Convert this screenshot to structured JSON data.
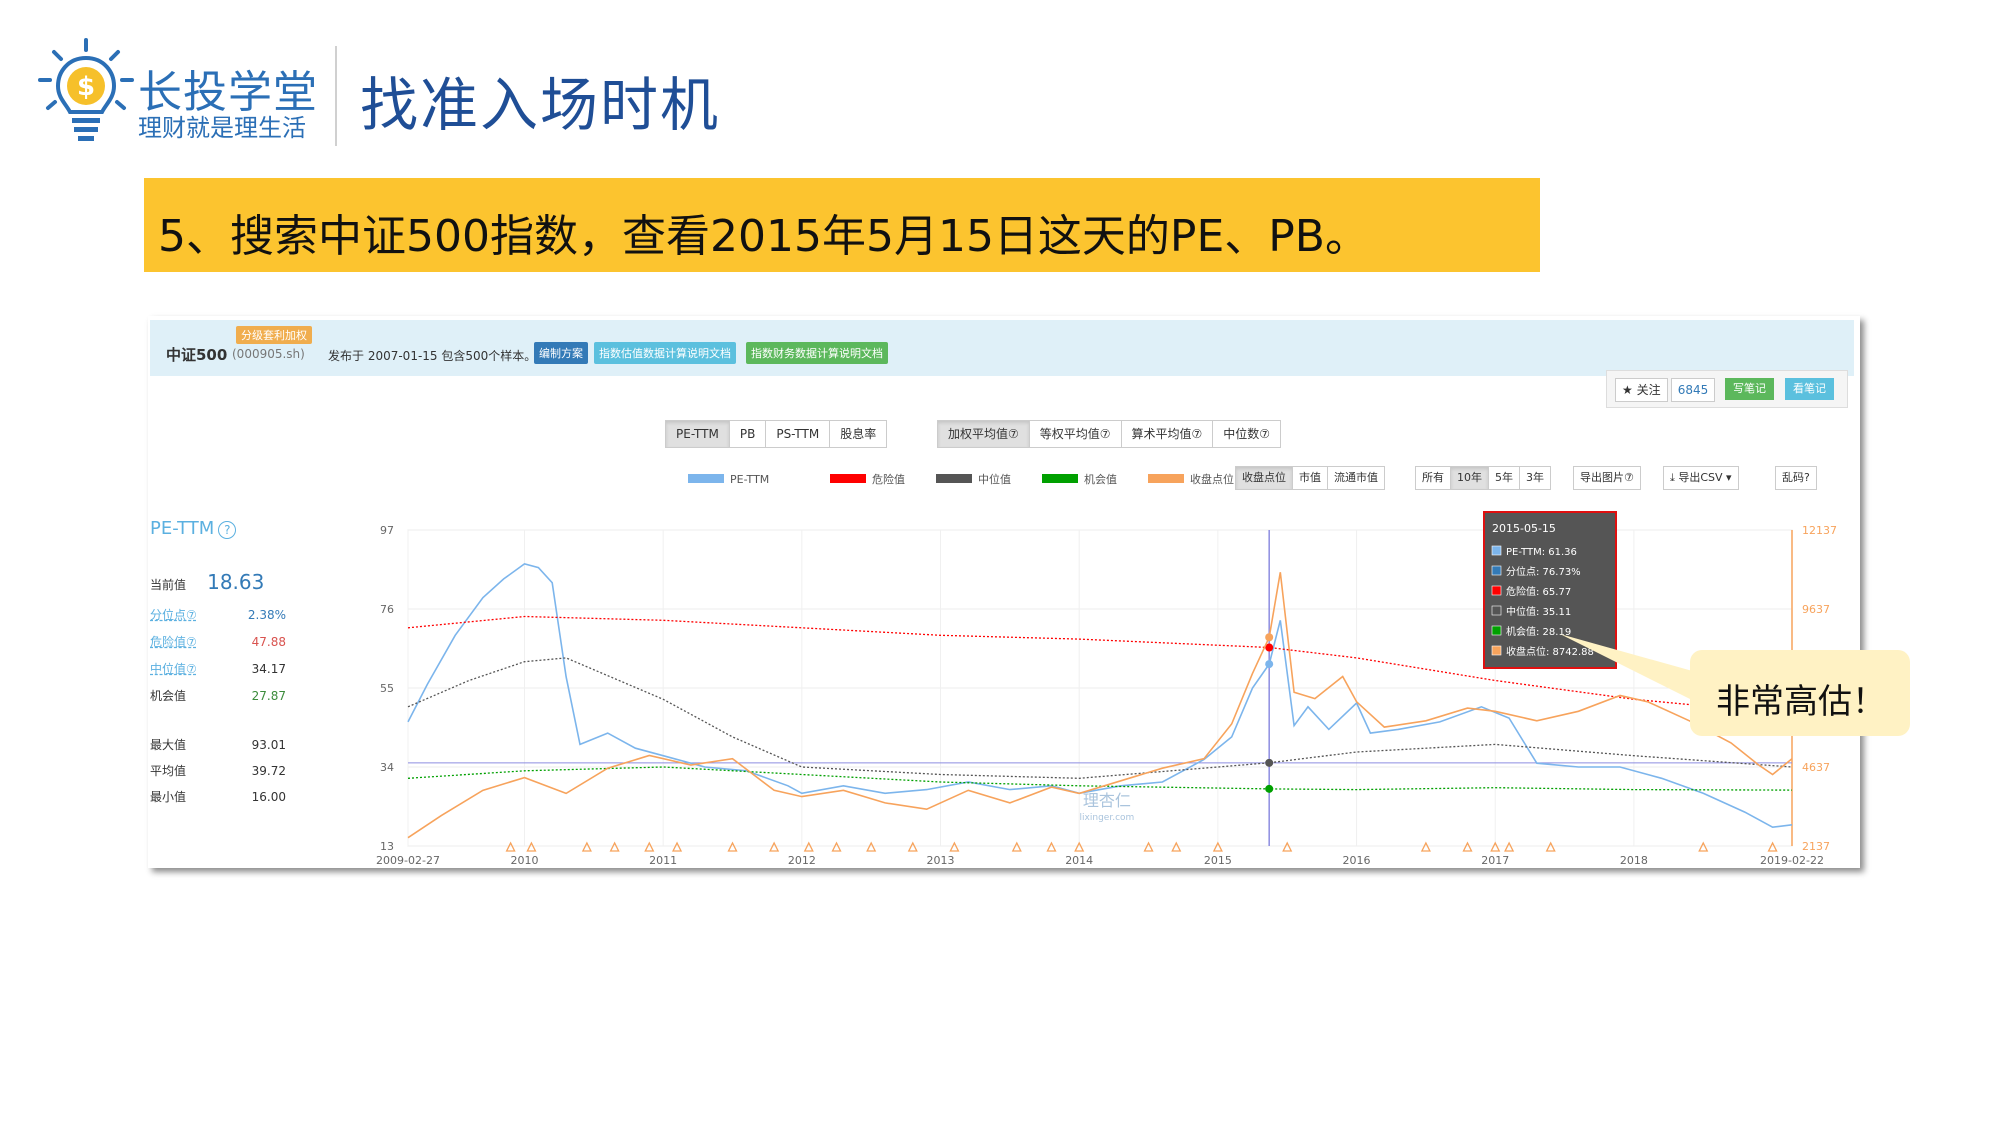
{
  "header": {
    "brand_name": "长投学堂",
    "brand_slogan": "理财就是理生活",
    "slide_title": "找准入场时机",
    "logo_icon": "lightbulb-dollar-icon"
  },
  "banner": {
    "text": "5、搜索中证500指数，查看2015年5月15日这天的PE、PB。"
  },
  "index_info": {
    "badge": "分级套利加权",
    "name": "中证500",
    "code": "(000905.sh)",
    "description": "发布于 2007-01-15 包含500个样本。",
    "buttons": [
      "编制方案",
      "指数估值数据计算说明文档",
      "指数财务数据计算说明文档"
    ]
  },
  "follow": {
    "follow_label": "★ 关注",
    "count": "6845",
    "write_note": "写笔记",
    "view_note": "看笔记"
  },
  "metric_tabs": [
    "PE-TTM",
    "PB",
    "PS-TTM",
    "股息率"
  ],
  "metric_active": 0,
  "avg_tabs": [
    "加权平均值⑦",
    "等权平均值⑦",
    "算术平均值⑦",
    "中位数⑦"
  ],
  "avg_active": 0,
  "secondary_tabs": [
    "收盘点位",
    "市值",
    "流通市值"
  ],
  "secondary_active": 0,
  "range_tabs": [
    "所有",
    "10年",
    "5年",
    "3年"
  ],
  "range_active": 1,
  "tools": {
    "export_image": "导出图片⑦",
    "export_csv": "导出CSV",
    "garbled": "乱码?"
  },
  "stats": {
    "title": "PE-TTM",
    "current_label": "当前值",
    "current_value": "18.63",
    "rows": [
      {
        "label": "分位点⑦",
        "value": "2.38%",
        "color": "#337ab7",
        "link": true
      },
      {
        "label": "危险值⑦",
        "value": "47.88",
        "color": "#d9534f",
        "link": true
      },
      {
        "label": "中位值⑦",
        "value": "34.17",
        "color": "#333333",
        "link": true
      },
      {
        "label": "机会值",
        "value": "27.87",
        "color": "#3c8c3c",
        "link": false
      }
    ],
    "rows2": [
      {
        "label": "最大值",
        "value": "93.01"
      },
      {
        "label": "平均值",
        "value": "39.72"
      },
      {
        "label": "最小值",
        "value": "16.00"
      }
    ]
  },
  "tooltip": {
    "date": "2015-05-15",
    "items": [
      {
        "label": "PE-TTM: 61.36",
        "color": "#7cb5ec"
      },
      {
        "label": "分位点: 76.73%",
        "color": "#337ab7"
      },
      {
        "label": "危险值: 65.77",
        "color": "#ff0000"
      },
      {
        "label": "中位值: 35.11",
        "color": "#555555"
      },
      {
        "label": "机会值: 28.19",
        "color": "#00a000"
      },
      {
        "label": "收盘点位: 8742.88",
        "color": "#f7a35c"
      }
    ]
  },
  "callout": {
    "text": "非常高估！"
  },
  "watermark": {
    "text": "理杏仁",
    "url": "lixinger.com"
  },
  "chart_data": {
    "type": "line",
    "legend": [
      "PE-TTM",
      "危险值",
      "中位值",
      "机会值",
      "收盘点位"
    ],
    "legend_placement": "top-center",
    "colors": {
      "PE-TTM": "#7cb5ec",
      "危险值": "#ff0000",
      "中位值": "#555555",
      "机会值": "#00a000",
      "收盘点位": "#f7a35c"
    },
    "x_tick_labels": [
      "2009-02-27",
      "2010",
      "2011",
      "2012",
      "2013",
      "2014",
      "2015",
      "2016",
      "2017",
      "2018",
      "2019-02-22"
    ],
    "x_tick_years": [
      2009.16,
      2010,
      2011,
      2012,
      2013,
      2014,
      2015,
      2016,
      2017,
      2018,
      2019.14
    ],
    "xlim": [
      2009.16,
      2019.14
    ],
    "y_left_ticks": [
      13,
      34,
      55,
      76,
      97
    ],
    "y_left_lim": [
      13,
      97
    ],
    "y_right_ticks": [
      2137,
      4637,
      7137,
      9637,
      12137
    ],
    "y_right_lim": [
      2137,
      12137
    ],
    "grid": true,
    "highlight_x": 2015.37,
    "series": [
      {
        "name": "PE-TTM",
        "axis": "left",
        "x": [
          2009.16,
          2009.3,
          2009.5,
          2009.7,
          2009.85,
          2010.0,
          2010.1,
          2010.2,
          2010.3,
          2010.4,
          2010.6,
          2010.8,
          2011.0,
          2011.3,
          2011.6,
          2011.9,
          2012.0,
          2012.3,
          2012.6,
          2012.9,
          2013.2,
          2013.5,
          2013.8,
          2014.0,
          2014.3,
          2014.6,
          2014.9,
          2015.1,
          2015.25,
          2015.37,
          2015.45,
          2015.55,
          2015.65,
          2015.8,
          2016.0,
          2016.1,
          2016.3,
          2016.6,
          2016.9,
          2017.1,
          2017.3,
          2017.6,
          2017.9,
          2018.2,
          2018.5,
          2018.8,
          2019.0,
          2019.14
        ],
        "values": [
          46,
          56,
          69,
          79,
          84,
          88,
          87,
          83,
          58,
          40,
          43,
          39,
          37,
          34,
          33,
          29,
          27,
          29,
          27,
          28,
          30,
          28,
          29,
          27,
          29,
          30,
          36,
          42,
          55,
          61.36,
          73,
          45,
          50,
          44,
          51,
          43,
          44,
          46,
          50,
          47,
          35,
          34,
          34,
          31,
          27,
          22,
          18,
          18.63
        ]
      },
      {
        "name": "危险值",
        "axis": "left",
        "x": [
          2009.16,
          2010.0,
          2011.0,
          2012.0,
          2013.0,
          2014.0,
          2015.37,
          2016.0,
          2017.0,
          2018.0,
          2019.14
        ],
        "values": [
          71,
          74,
          73,
          71,
          69,
          68,
          65.77,
          63,
          57,
          52,
          48
        ]
      },
      {
        "name": "中位值",
        "axis": "left",
        "x": [
          2009.16,
          2009.6,
          2010.0,
          2010.3,
          2011.0,
          2011.5,
          2012.0,
          2013.0,
          2014.0,
          2015.0,
          2015.37,
          2016.0,
          2017.0,
          2018.0,
          2019.14
        ],
        "values": [
          50,
          57,
          62,
          63,
          52,
          42,
          34,
          32,
          31,
          34,
          35.11,
          38,
          40,
          37,
          34
        ]
      },
      {
        "name": "机会值",
        "axis": "left",
        "x": [
          2009.16,
          2010.0,
          2011.0,
          2012.0,
          2013.0,
          2014.0,
          2015.37,
          2016.0,
          2017.0,
          2018.0,
          2019.14
        ],
        "values": [
          31,
          33,
          34,
          32,
          30,
          29,
          28.19,
          28,
          28.5,
          28,
          27.87
        ]
      },
      {
        "name": "收盘点位",
        "axis": "right",
        "x": [
          2009.16,
          2009.4,
          2009.7,
          2010.0,
          2010.3,
          2010.6,
          2010.9,
          2011.2,
          2011.5,
          2011.8,
          2012.0,
          2012.3,
          2012.6,
          2012.9,
          2013.2,
          2013.5,
          2013.8,
          2014.0,
          2014.3,
          2014.6,
          2014.9,
          2015.1,
          2015.25,
          2015.37,
          2015.45,
          2015.55,
          2015.7,
          2015.9,
          2016.0,
          2016.2,
          2016.5,
          2016.8,
          2017.0,
          2017.3,
          2017.6,
          2017.9,
          2018.1,
          2018.4,
          2018.7,
          2018.9,
          2019.0,
          2019.14
        ],
        "values": [
          2400,
          3100,
          3900,
          4300,
          3800,
          4600,
          5000,
          4700,
          4900,
          3900,
          3700,
          3900,
          3500,
          3300,
          3900,
          3500,
          4000,
          3800,
          4200,
          4600,
          4900,
          6000,
          7600,
          8742.88,
          10800,
          7000,
          6800,
          7500,
          6700,
          5900,
          6100,
          6500,
          6400,
          6100,
          6400,
          6900,
          6700,
          6100,
          5400,
          4700,
          4400,
          4900
        ]
      }
    ],
    "y_left_label": "",
    "y_right_label": "",
    "title": ""
  }
}
